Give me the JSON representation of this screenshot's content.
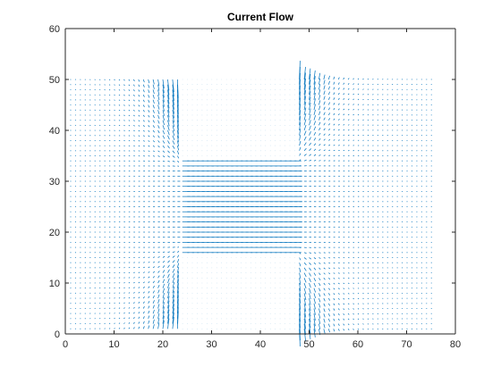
{
  "chart_data": {
    "type": "quiver",
    "title": "Current Flow",
    "xlabel": "",
    "ylabel": "",
    "xlim": [
      0,
      80
    ],
    "ylim": [
      0,
      60
    ],
    "x_ticks": [
      0,
      10,
      20,
      30,
      40,
      50,
      60,
      70,
      80
    ],
    "y_ticks": [
      0,
      10,
      20,
      30,
      40,
      50,
      60
    ],
    "grid": false,
    "legend": "none",
    "arrow_color": "#0072BD",
    "axis_color": "#262626",
    "field": {
      "x_range": [
        1,
        75
      ],
      "y_range": [
        1,
        50
      ],
      "step": 1,
      "outer_regions_x": [
        [
          1,
          24
        ],
        [
          47,
          75
        ]
      ],
      "channel_x": [
        24,
        47
      ],
      "channel_y": [
        16,
        34
      ],
      "insulator_regions": [
        {
          "x": [
            24,
            47
          ],
          "y": [
            34,
            50
          ]
        },
        {
          "x": [
            24,
            47
          ],
          "y": [
            1,
            16
          ]
        }
      ]
    }
  }
}
